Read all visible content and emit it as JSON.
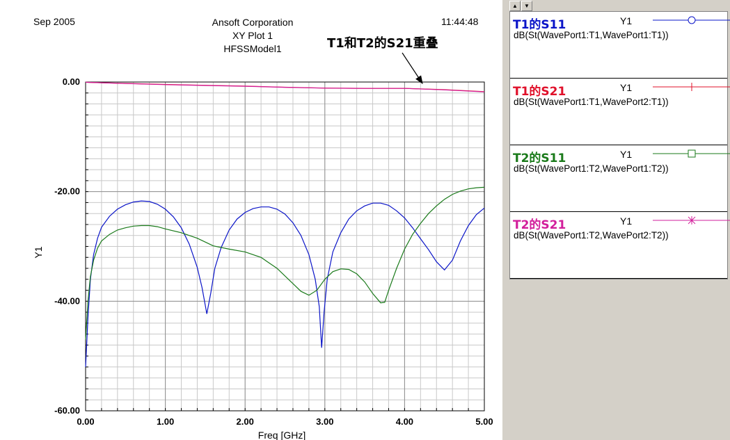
{
  "header": {
    "date": "Sep 2005",
    "company": "Ansoft Corporation",
    "plot_name": "XY Plot 1",
    "model": "HFSSModel1",
    "time": "11:44:48"
  },
  "annotation": "T1和T2的S21重叠",
  "legend": [
    {
      "name": "T1的S11",
      "axis": "Y1",
      "expr": "dB(St(WavePort1:T1,WavePort1:T1))",
      "color": "#0a14c8",
      "marker": "circle"
    },
    {
      "name": "T1的S21",
      "axis": "Y1",
      "expr": "dB(St(WavePort1:T1,WavePort2:T1))",
      "color": "#e0102a",
      "marker": "tick"
    },
    {
      "name": "T2的S11",
      "axis": "Y1",
      "expr": "dB(St(WavePort1:T2,WavePort1:T2))",
      "color": "#1a7a1a",
      "marker": "square"
    },
    {
      "name": "T2的S21",
      "axis": "Y1",
      "expr": "dB(St(WavePort1:T2,WavePort2:T2))",
      "color": "#d21e9b",
      "marker": "star"
    }
  ],
  "chart_data": {
    "type": "line",
    "xlabel": "Freq [GHz]",
    "ylabel": "Y1",
    "xlim": [
      0,
      5
    ],
    "ylim": [
      -60,
      0
    ],
    "xticks": [
      "0.00",
      "1.00",
      "2.00",
      "3.00",
      "4.00",
      "5.00"
    ],
    "yticks": [
      "0.00",
      "-20.00",
      "-40.00",
      "-60.00"
    ],
    "grid": true,
    "series": [
      {
        "name": "T1的S11",
        "color": "#0a14c8",
        "points": [
          [
            0.0,
            -52
          ],
          [
            0.03,
            -43
          ],
          [
            0.06,
            -36
          ],
          [
            0.1,
            -31.5
          ],
          [
            0.15,
            -28.5
          ],
          [
            0.2,
            -26.5
          ],
          [
            0.3,
            -24.5
          ],
          [
            0.4,
            -23.2
          ],
          [
            0.5,
            -22.4
          ],
          [
            0.6,
            -21.9
          ],
          [
            0.7,
            -21.7
          ],
          [
            0.8,
            -21.8
          ],
          [
            0.9,
            -22.3
          ],
          [
            1.0,
            -23.2
          ],
          [
            1.1,
            -24.6
          ],
          [
            1.2,
            -26.6
          ],
          [
            1.3,
            -29.6
          ],
          [
            1.4,
            -33.8
          ],
          [
            1.46,
            -37.5
          ],
          [
            1.52,
            -42.3
          ],
          [
            1.57,
            -38.5
          ],
          [
            1.62,
            -34
          ],
          [
            1.7,
            -30.2
          ],
          [
            1.8,
            -27
          ],
          [
            1.9,
            -25
          ],
          [
            2.0,
            -23.8
          ],
          [
            2.1,
            -23.1
          ],
          [
            2.2,
            -22.8
          ],
          [
            2.3,
            -22.8
          ],
          [
            2.4,
            -23.2
          ],
          [
            2.5,
            -24.1
          ],
          [
            2.6,
            -25.7
          ],
          [
            2.7,
            -28
          ],
          [
            2.8,
            -31.5
          ],
          [
            2.88,
            -36
          ],
          [
            2.93,
            -41
          ],
          [
            2.96,
            -48.5
          ],
          [
            2.99,
            -42
          ],
          [
            3.03,
            -36
          ],
          [
            3.1,
            -31
          ],
          [
            3.2,
            -27.5
          ],
          [
            3.3,
            -25
          ],
          [
            3.4,
            -23.5
          ],
          [
            3.5,
            -22.6
          ],
          [
            3.6,
            -22.1
          ],
          [
            3.7,
            -22.1
          ],
          [
            3.8,
            -22.5
          ],
          [
            3.9,
            -23.5
          ],
          [
            4.0,
            -24.8
          ],
          [
            4.1,
            -26.6
          ],
          [
            4.2,
            -28.6
          ],
          [
            4.3,
            -30.6
          ],
          [
            4.4,
            -32.8
          ],
          [
            4.5,
            -34.3
          ],
          [
            4.6,
            -32.5
          ],
          [
            4.7,
            -29
          ],
          [
            4.8,
            -26.2
          ],
          [
            4.9,
            -24.2
          ],
          [
            5.0,
            -23
          ]
        ]
      },
      {
        "name": "T1的S21",
        "color": "#e0102a",
        "points": [
          [
            0.0,
            -0.05
          ],
          [
            0.5,
            -0.25
          ],
          [
            1.0,
            -0.45
          ],
          [
            1.5,
            -0.6
          ],
          [
            2.0,
            -0.75
          ],
          [
            2.5,
            -0.95
          ],
          [
            3.0,
            -1.1
          ],
          [
            3.5,
            -1.15
          ],
          [
            4.0,
            -1.15
          ],
          [
            4.5,
            -1.4
          ],
          [
            5.0,
            -1.75
          ]
        ]
      },
      {
        "name": "T2的S11",
        "color": "#1a7a1a",
        "points": [
          [
            0.0,
            -47
          ],
          [
            0.03,
            -40
          ],
          [
            0.06,
            -35.5
          ],
          [
            0.1,
            -32.5
          ],
          [
            0.15,
            -30.3
          ],
          [
            0.2,
            -29
          ],
          [
            0.3,
            -27.8
          ],
          [
            0.4,
            -27
          ],
          [
            0.5,
            -26.6
          ],
          [
            0.6,
            -26.3
          ],
          [
            0.7,
            -26.2
          ],
          [
            0.8,
            -26.2
          ],
          [
            0.9,
            -26.4
          ],
          [
            1.0,
            -26.8
          ],
          [
            1.2,
            -27.5
          ],
          [
            1.4,
            -28.5
          ],
          [
            1.5,
            -29.2
          ],
          [
            1.6,
            -29.9
          ],
          [
            1.8,
            -30.5
          ],
          [
            2.0,
            -31
          ],
          [
            2.2,
            -32
          ],
          [
            2.4,
            -34
          ],
          [
            2.6,
            -36.8
          ],
          [
            2.7,
            -38.2
          ],
          [
            2.8,
            -38.9
          ],
          [
            2.9,
            -38
          ],
          [
            3.0,
            -36
          ],
          [
            3.1,
            -34.6
          ],
          [
            3.2,
            -34.1
          ],
          [
            3.3,
            -34.2
          ],
          [
            3.4,
            -35
          ],
          [
            3.5,
            -36.5
          ],
          [
            3.6,
            -38.6
          ],
          [
            3.7,
            -40.3
          ],
          [
            3.75,
            -40.2
          ],
          [
            3.8,
            -38
          ],
          [
            3.9,
            -34
          ],
          [
            4.0,
            -30.5
          ],
          [
            4.1,
            -27.8
          ],
          [
            4.2,
            -25.8
          ],
          [
            4.3,
            -24
          ],
          [
            4.4,
            -22.6
          ],
          [
            4.5,
            -21.4
          ],
          [
            4.6,
            -20.5
          ],
          [
            4.7,
            -19.9
          ],
          [
            4.8,
            -19.5
          ],
          [
            4.9,
            -19.3
          ],
          [
            5.0,
            -19.2
          ]
        ]
      },
      {
        "name": "T2的S21",
        "color": "#d21e9b",
        "points": [
          [
            0.0,
            -0.05
          ],
          [
            0.5,
            -0.28
          ],
          [
            1.0,
            -0.48
          ],
          [
            1.5,
            -0.63
          ],
          [
            2.0,
            -0.78
          ],
          [
            2.5,
            -0.97
          ],
          [
            3.0,
            -1.12
          ],
          [
            3.5,
            -1.17
          ],
          [
            4.0,
            -1.17
          ],
          [
            4.5,
            -1.43
          ],
          [
            5.0,
            -1.8
          ]
        ]
      }
    ]
  }
}
